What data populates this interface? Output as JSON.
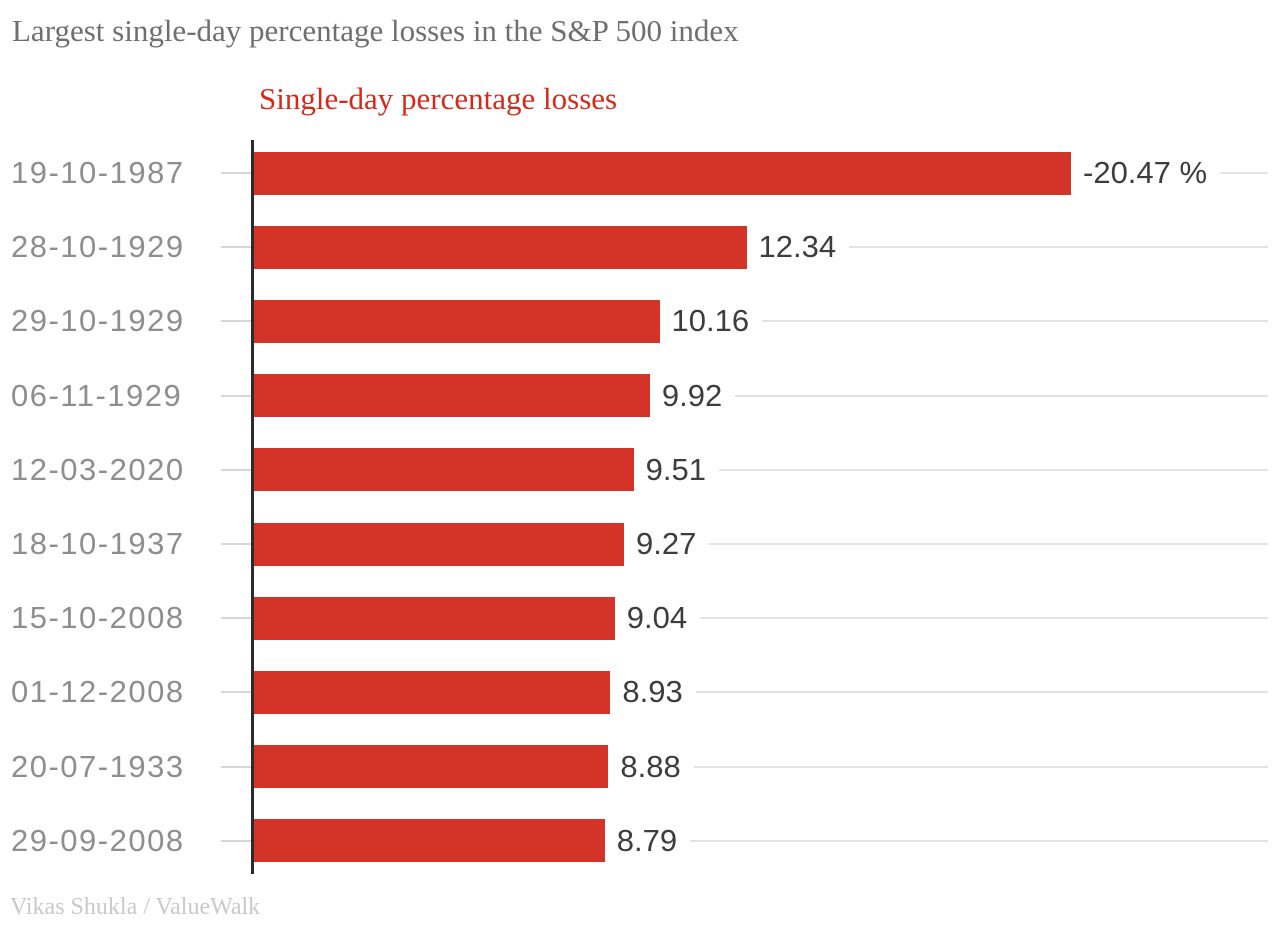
{
  "header": {
    "title": "Largest single-day percentage losses in the S&P 500 index"
  },
  "legend": {
    "label": "Single-day percentage losses"
  },
  "footer": {
    "attribution": "Vikas Shukla / ValueWalk"
  },
  "colors": {
    "bar": "#d33427",
    "legend_text": "#d5291c",
    "title_text": "#6f6f6f",
    "category_text": "#8e8e8e",
    "value_text": "#3d3d3d",
    "axis": "#2b2b2b",
    "tick": "#d6d6d6",
    "leader_line": "#e3e3e3",
    "attribution_text": "#c9c9c9"
  },
  "chart_data": {
    "type": "bar",
    "orientation": "horizontal",
    "title": "Largest single-day percentage losses in the S&P 500 index",
    "legend": "Single-day percentage losses",
    "legend_position": "top",
    "grid": false,
    "xlim": [
      0,
      20.47
    ],
    "categories": [
      "19-10-1987",
      "28-10-1929",
      "29-10-1929",
      "06-11-1929",
      "12-03-2020",
      "18-10-1937",
      "15-10-2008",
      "01-12-2008",
      "20-07-1933",
      "29-09-2008"
    ],
    "values": [
      20.47,
      12.34,
      10.16,
      9.92,
      9.51,
      9.27,
      9.04,
      8.93,
      8.88,
      8.79
    ],
    "value_labels": [
      "-20.47 %",
      "12.34",
      "10.16",
      "9.92",
      "9.51",
      "9.27",
      "9.04",
      "8.93",
      "8.88",
      "8.79"
    ]
  }
}
